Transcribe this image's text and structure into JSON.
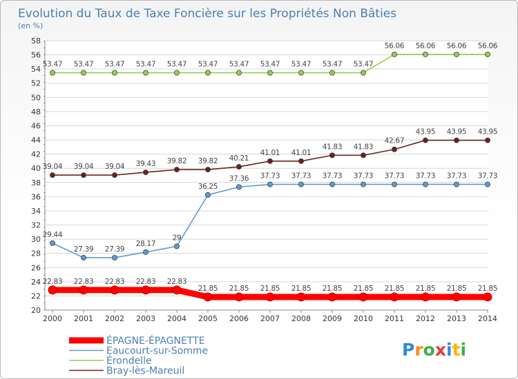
{
  "chart_data": {
    "type": "line",
    "title": "Evolution du Taux de Taxe Foncière sur les Propriétés Non Bâties",
    "subtitle": "(en %)",
    "ylim": [
      20,
      58
    ],
    "yticks": [
      20,
      22,
      24,
      26,
      28,
      30,
      32,
      34,
      36,
      38,
      40,
      42,
      44,
      46,
      48,
      50,
      52,
      54,
      56,
      58
    ],
    "x": [
      "2000",
      "2001",
      "2002",
      "2003",
      "2004",
      "2005",
      "2006",
      "2007",
      "2008",
      "2009",
      "2010",
      "2011",
      "2012",
      "2013",
      "2014"
    ],
    "series": [
      {
        "name": "ÉPAGNE-ÉPAGNETTE",
        "color": "#ff0000",
        "thick": true,
        "values": [
          22.83,
          22.83,
          22.83,
          22.83,
          22.83,
          21.85,
          21.85,
          21.85,
          21.85,
          21.85,
          21.85,
          21.85,
          21.85,
          21.85,
          21.85
        ],
        "labels": [
          "22.83",
          "22.83",
          "22.83",
          "22.83",
          "22.83",
          "21.85",
          "21.85",
          "21.85",
          "21.85",
          "21.85",
          "21.85",
          "21.85",
          "21.85",
          "21.85",
          "21.85"
        ]
      },
      {
        "name": "Eaucourt-sur-Somme",
        "color": "#5b9bd5",
        "thick": false,
        "values": [
          29.44,
          27.39,
          27.39,
          28.17,
          29,
          36.25,
          37.36,
          37.73,
          37.73,
          37.73,
          37.73,
          37.73,
          37.73,
          37.73,
          37.73
        ],
        "labels": [
          "29.44",
          "27.39",
          "27.39",
          "28.17",
          "29",
          "36.25",
          "37.36",
          "37.73",
          "37.73",
          "37.73",
          "37.73",
          "37.73",
          "37.73",
          "37.73",
          "37.73"
        ]
      },
      {
        "name": "Érondelle",
        "color": "#8fd14f",
        "thick": false,
        "values": [
          53.47,
          53.47,
          53.47,
          53.47,
          53.47,
          53.47,
          53.47,
          53.47,
          53.47,
          53.47,
          53.47,
          56.06,
          56.06,
          56.06,
          56.06
        ],
        "labels": [
          "53.47",
          "53.47",
          "53.47",
          "53.47",
          "53.47",
          "53.47",
          "53.47",
          "53.47",
          "53.47",
          "53.47",
          "53.47",
          "56.06",
          "56.06",
          "56.06",
          "56.06"
        ]
      },
      {
        "name": "Bray-lès-Mareuil",
        "color": "#6b2020",
        "thick": false,
        "values": [
          39.04,
          39.04,
          39.04,
          39.43,
          39.82,
          39.82,
          40.21,
          41.01,
          41.01,
          41.83,
          41.83,
          42.67,
          43.95,
          43.95,
          43.95
        ],
        "labels": [
          "39.04",
          "39.04",
          "39.04",
          "39.43",
          "39.82",
          "39.82",
          "40.21",
          "41.01",
          "41.01",
          "41.83",
          "41.83",
          "42.67",
          "43.95",
          "43.95",
          "43.95"
        ]
      }
    ],
    "legend_position": "bottom-left",
    "logo": "Proxiti"
  }
}
